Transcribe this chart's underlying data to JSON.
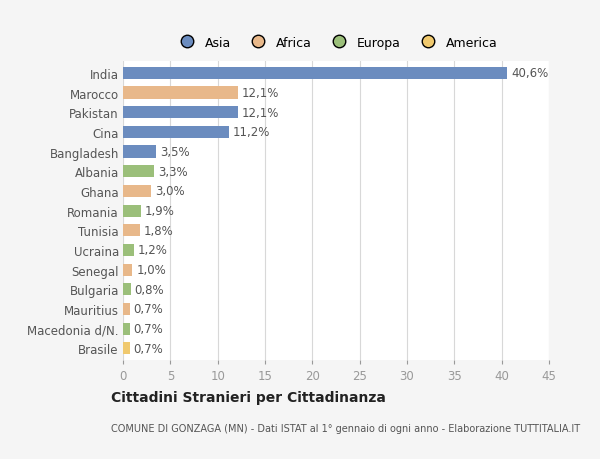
{
  "countries": [
    "India",
    "Marocco",
    "Pakistan",
    "Cina",
    "Bangladesh",
    "Albania",
    "Ghana",
    "Romania",
    "Tunisia",
    "Ucraina",
    "Senegal",
    "Bulgaria",
    "Mauritius",
    "Macedonia d/N.",
    "Brasile"
  ],
  "values": [
    40.6,
    12.1,
    12.1,
    11.2,
    3.5,
    3.3,
    3.0,
    1.9,
    1.8,
    1.2,
    1.0,
    0.8,
    0.7,
    0.7,
    0.7
  ],
  "labels": [
    "40,6%",
    "12,1%",
    "12,1%",
    "11,2%",
    "3,5%",
    "3,3%",
    "3,0%",
    "1,9%",
    "1,8%",
    "1,2%",
    "1,0%",
    "0,8%",
    "0,7%",
    "0,7%",
    "0,7%"
  ],
  "colors": [
    "#6b8cbf",
    "#e8b88a",
    "#6b8cbf",
    "#6b8cbf",
    "#6b8cbf",
    "#9bbf7a",
    "#e8b88a",
    "#9bbf7a",
    "#e8b88a",
    "#9bbf7a",
    "#e8b88a",
    "#9bbf7a",
    "#e8b88a",
    "#9bbf7a",
    "#f0c96e"
  ],
  "legend_labels": [
    "Asia",
    "Africa",
    "Europa",
    "America"
  ],
  "legend_colors": [
    "#6b8cbf",
    "#e8b88a",
    "#9bbf7a",
    "#f0c96e"
  ],
  "title": "Cittadini Stranieri per Cittadinanza",
  "subtitle": "COMUNE DI GONZAGA (MN) - Dati ISTAT al 1° gennaio di ogni anno - Elaborazione TUTTITALIA.IT",
  "xlim": [
    0,
    45
  ],
  "xticks": [
    0,
    5,
    10,
    15,
    20,
    25,
    30,
    35,
    40,
    45
  ],
  "background_color": "#f5f5f5",
  "bar_background": "#ffffff",
  "grid_color": "#d8d8d8",
  "label_fontsize": 8.5,
  "tick_fontsize": 8.5,
  "bar_height": 0.62
}
